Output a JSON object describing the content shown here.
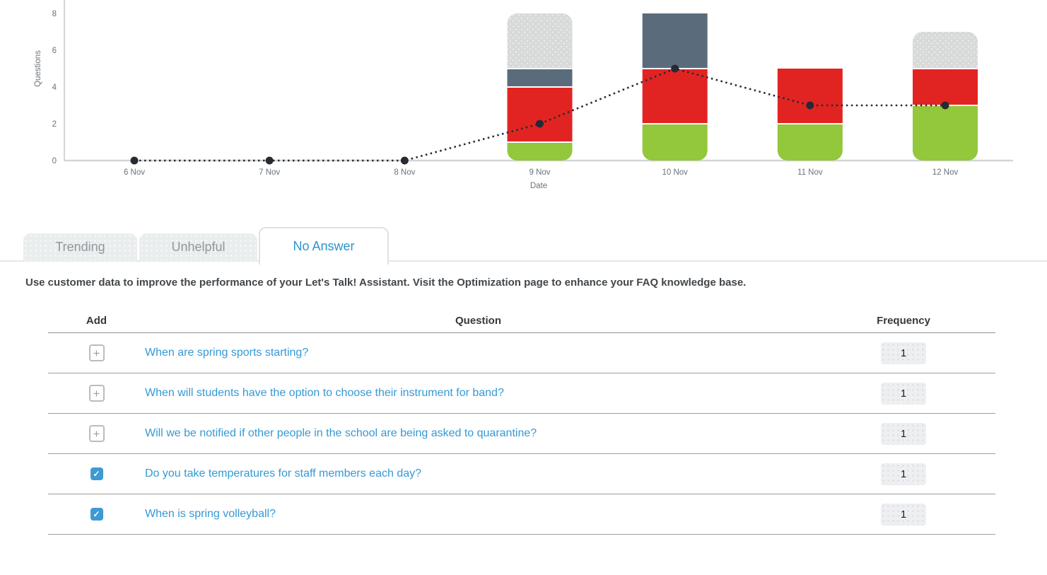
{
  "colors": {
    "green": "#93c73c",
    "red": "#e12422",
    "slate": "#5a6c7b",
    "lightgray": "#d8d9da",
    "line": "#262b33",
    "axis": "#d3d5d7",
    "tick_text": "#6a737b",
    "tab_active_text": "#2a95d1",
    "tab_inactive_text": "#90989d",
    "question_link": "#3599d4"
  },
  "chart_data": {
    "type": "bar",
    "subtype": "stacked-bars-with-dotted-line-overlay",
    "x": [
      "6 Nov",
      "7 Nov",
      "8 Nov",
      "9 Nov",
      "10 Nov",
      "11 Nov",
      "12 Nov"
    ],
    "xlabel": "Date",
    "ylabel": "Questions",
    "ylim": [
      0,
      8
    ],
    "yticks": [
      0,
      2,
      4,
      6,
      8
    ],
    "grid": false,
    "legend": "none",
    "series": [
      {
        "name": "green-segment",
        "type": "bar",
        "color": "#93c73c",
        "values": [
          0,
          0,
          0,
          1,
          2,
          2,
          3
        ]
      },
      {
        "name": "red-segment",
        "type": "bar",
        "color": "#e12422",
        "values": [
          0,
          0,
          0,
          3,
          3,
          3,
          2
        ]
      },
      {
        "name": "slate-segment",
        "type": "bar",
        "color": "#5a6c7b",
        "values": [
          0,
          0,
          0,
          1,
          3,
          0,
          0
        ]
      },
      {
        "name": "lightgray-segment",
        "type": "bar",
        "color": "#d8d9da",
        "values": [
          0,
          0,
          0,
          3,
          0,
          0,
          2
        ]
      },
      {
        "name": "dotted-line",
        "type": "line",
        "color": "#262b33",
        "values": [
          0,
          0,
          0,
          2,
          5,
          3,
          3
        ]
      }
    ]
  },
  "tabs": [
    {
      "label": "Trending",
      "active": false
    },
    {
      "label": "Unhelpful",
      "active": false
    },
    {
      "label": "No Answer",
      "active": true
    }
  ],
  "description": "Use customer data to improve the performance of your Let's Talk! Assistant. Visit the Optimization page to enhance your FAQ knowledge base.",
  "table": {
    "headers": {
      "add": "Add",
      "question": "Question",
      "frequency": "Frequency"
    },
    "rows": [
      {
        "added": false,
        "question": "When are spring sports starting?",
        "frequency": "1"
      },
      {
        "added": false,
        "question": "When will students have the option to choose their instrument for band?",
        "frequency": "1"
      },
      {
        "added": false,
        "question": "Will we be notified if other people in the school are being asked to quarantine?",
        "frequency": "1"
      },
      {
        "added": true,
        "question": "Do you take temperatures for staff members each day?",
        "frequency": "1"
      },
      {
        "added": true,
        "question": "When is spring volleyball?",
        "frequency": "1"
      }
    ]
  }
}
